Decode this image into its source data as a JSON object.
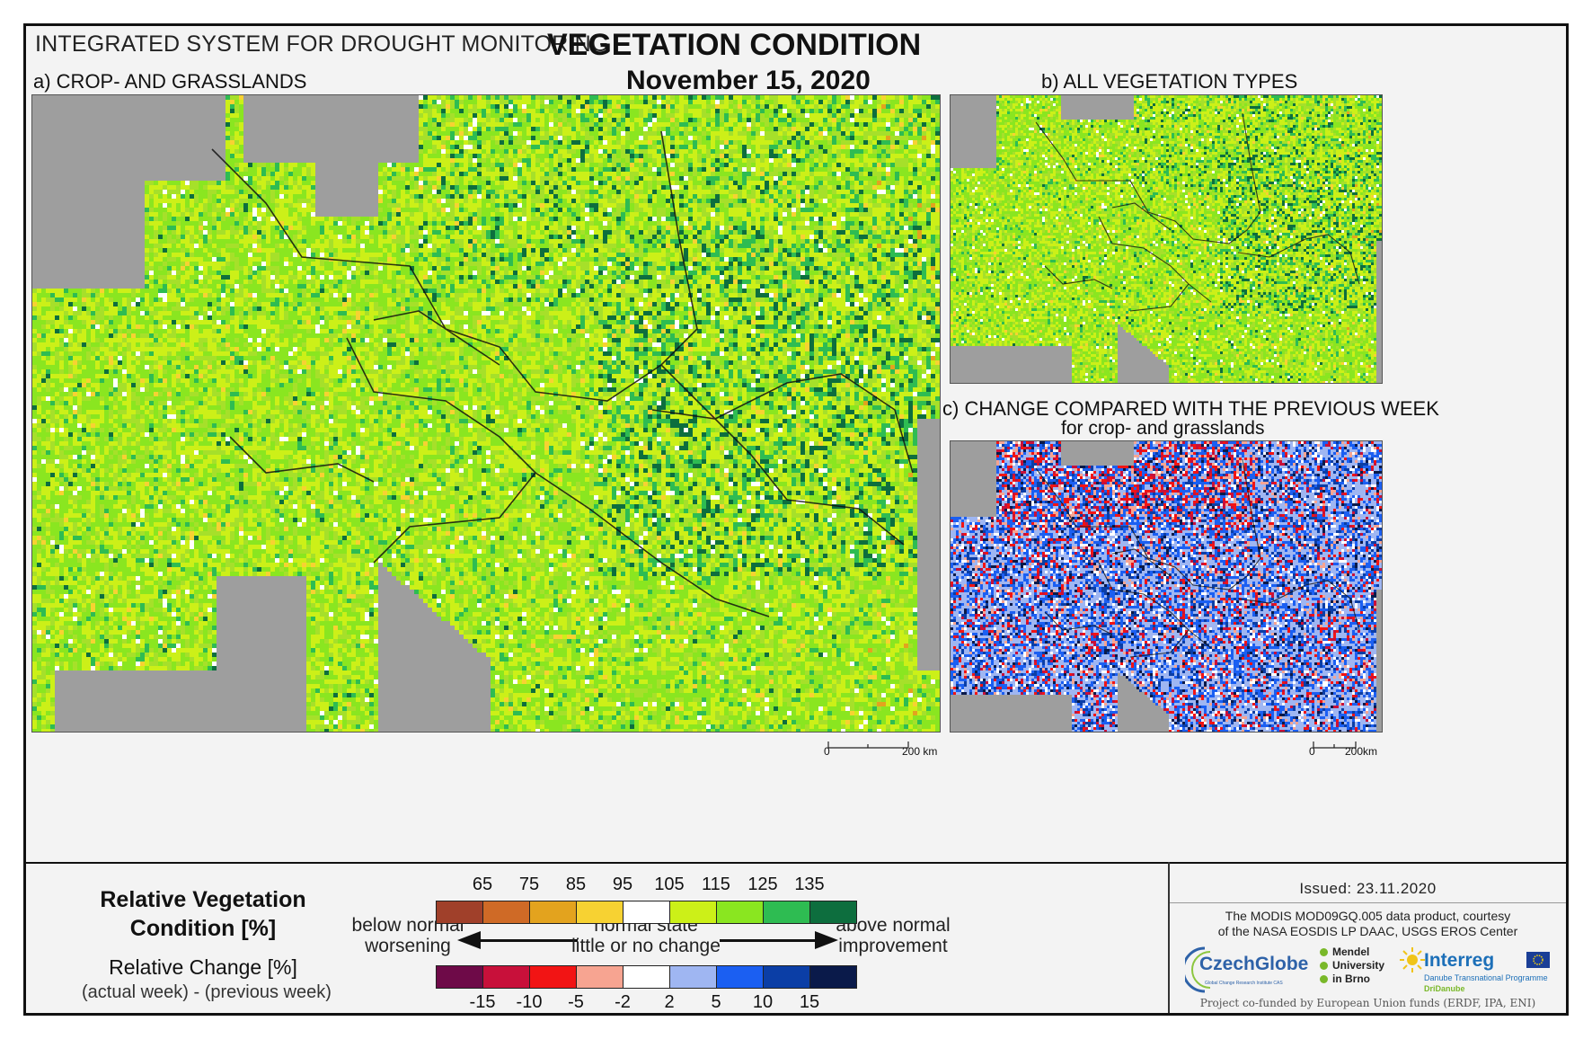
{
  "header": {
    "system_title": "INTEGRATED SYSTEM FOR DROUGHT MONITORING",
    "main_title": "VEGETATION CONDITION",
    "date": "November 15, 2020"
  },
  "panels": {
    "a_label": "a) CROP- AND GRASSLANDS",
    "b_label": "b) ALL VEGETATION TYPES",
    "c_label": "c) CHANGE COMPARED WITH THE PREVIOUS WEEK",
    "c_sublabel": "for crop- and grasslands"
  },
  "scalebars": {
    "a": {
      "zero": "0",
      "end": "200 km"
    },
    "c": {
      "zero": "0",
      "end": "200km"
    }
  },
  "legend": {
    "rvc_title_line1": "Relative Vegetation",
    "rvc_title_line2": "Condition [%]",
    "rc_title": "Relative Change [%]",
    "rc_subtitle": "(actual week) - (previous week)",
    "rvc_ticks": [
      "65",
      "75",
      "85",
      "95",
      "105",
      "115",
      "125",
      "135"
    ],
    "rvc_colors": [
      "#a0402a",
      "#cf6a26",
      "#e3a31e",
      "#f7d232",
      "#ffffff",
      "#ccf018",
      "#8ae620",
      "#2ebc52",
      "#0d6e3e"
    ],
    "rc_ticks": [
      "-15",
      "-10",
      "-5",
      "-2",
      "2",
      "5",
      "10",
      "15"
    ],
    "rc_colors": [
      "#6e0a48",
      "#c8103a",
      "#f21414",
      "#f7a491",
      "#ffffff",
      "#9fb6f2",
      "#1b5ff2",
      "#0b3ea6",
      "#0a1a4a"
    ],
    "below_line1": "below normal",
    "below_line2": "worsening",
    "normal_line1": "normal state",
    "normal_line2": "little or no change",
    "above_line1": "above normal",
    "above_line2": "improvement"
  },
  "credits": {
    "issued": "Issued: 23.11.2020",
    "data_line1": "The MODIS MOD09GQ.005 data product, courtesy",
    "data_line2": "of the NASA EOSDIS LP DAAC, USGS EROS Center",
    "czechglobe": "CzechGlobe",
    "czechglobe_sub": "Global Change Research Institute CAS",
    "mendel_line1": "Mendel",
    "mendel_line2": "University",
    "mendel_line3": "in Brno",
    "interreg": "Interreg",
    "interreg_sub": "Danube Transnational Programme",
    "dridanube": "DriDanube",
    "funding": "Project co-funded by European Union funds (ERDF, IPA, ENI)"
  }
}
